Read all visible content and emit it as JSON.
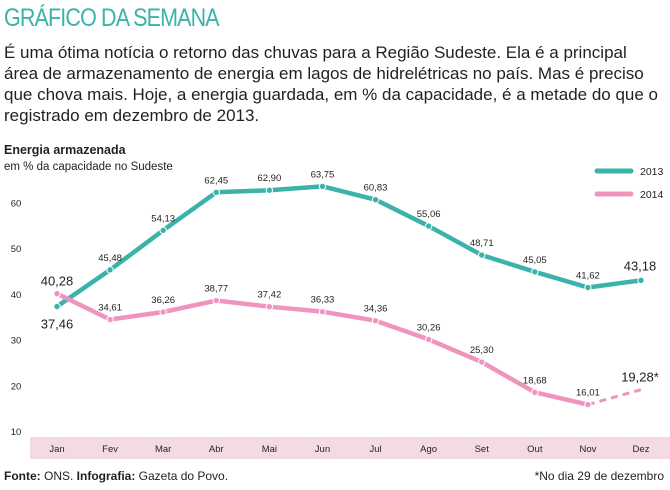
{
  "header": {
    "title": "GRÁFICO DA SEMANA",
    "intro": "É uma ótima notícia o retorno das chuvas para a Região Sudeste. Ela é a principal área de armazenamento de energia em lagos de hidrelétricas no país. Mas é preciso que chova mais. Hoje, a energia guardada, em % da capacidade, é a metade do que o registrado em dezembro de 2013."
  },
  "colors": {
    "teal": "#3bb3aa",
    "pink": "#ef94bd",
    "axis_band": "#f4dbe3",
    "title": "#3bb3aa"
  },
  "chart_data": {
    "type": "line",
    "title": "Energia armazenada",
    "ylabel": "em % da capacidade no Sudeste",
    "xlabel": "",
    "categories": [
      "Jan",
      "Fev",
      "Mar",
      "Abr",
      "Mai",
      "Jun",
      "Jul",
      "Ago",
      "Set",
      "Out",
      "Nov",
      "Dez"
    ],
    "ylim": [
      10,
      65
    ],
    "yticks": [
      10,
      20,
      30,
      40,
      50,
      60
    ],
    "grid": false,
    "legend_position": "top-right",
    "series": [
      {
        "name": "2013",
        "color": "#3bb3aa",
        "values": [
          37.46,
          45.48,
          54.13,
          62.45,
          62.9,
          63.75,
          60.83,
          55.06,
          48.71,
          45.05,
          41.62,
          43.18
        ],
        "labels": [
          "37,46",
          "45,48",
          "54,13",
          "62,45",
          "62,90",
          "63,75",
          "60,83",
          "55,06",
          "48,71",
          "45,05",
          "41,62",
          "43,18"
        ]
      },
      {
        "name": "2014",
        "color": "#ef94bd",
        "values": [
          40.28,
          34.61,
          36.26,
          38.77,
          37.42,
          36.33,
          34.36,
          30.26,
          25.3,
          18.68,
          16.01,
          19.28
        ],
        "labels": [
          "40,28",
          "34,61",
          "36,26",
          "38,77",
          "37,42",
          "36,33",
          "34,36",
          "30,26",
          "25,30",
          "18,68",
          "16,01",
          "19,28*"
        ],
        "dashed_last_segment": true
      }
    ]
  },
  "footer": {
    "source_label": "Fonte:",
    "source_value": " ONS. ",
    "credit_label": "Infografia:",
    "credit_value": " Gazeta do Povo.",
    "note": "*No dia 29 de dezembro"
  }
}
